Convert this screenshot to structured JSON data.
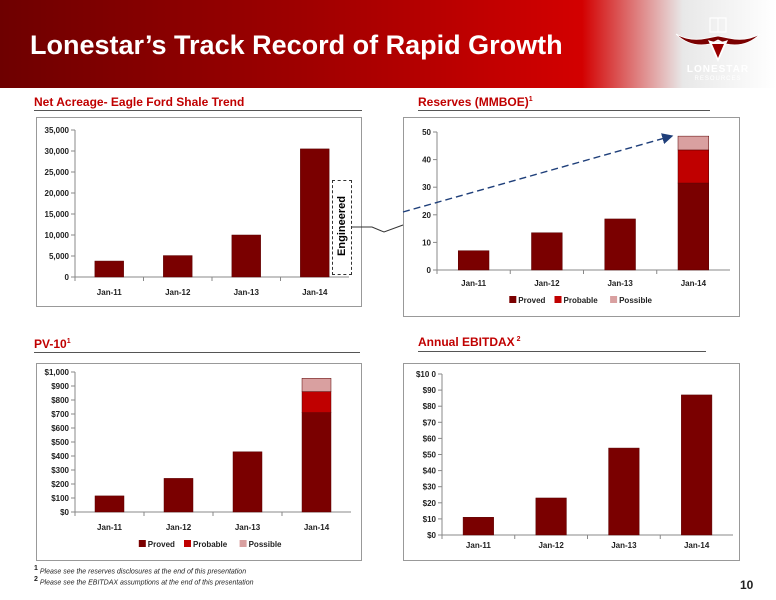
{
  "header": {
    "title": "Lonestar’s Track Record of Rapid Growth"
  },
  "logo": {
    "name": "LONESTAR",
    "sub": "RESOURCES"
  },
  "page_number": "10",
  "annotation": {
    "engineered": "Engineered"
  },
  "footnotes": [
    {
      "mark": "1",
      "text": "Please see the reserves disclosures at the end of this presentation"
    },
    {
      "mark": "2",
      "text": "Please see the EBITDAX assumptions at the end of this presentation"
    }
  ],
  "colors": {
    "proved": "#7a0000",
    "probable": "#c00000",
    "possible": "#d9a0a0",
    "header_dark": "#6e0000",
    "header_red": "#d30000"
  },
  "sections": {
    "acreage": {
      "title": "Net Acreage- Eagle Ford Shale Trend"
    },
    "reserves": {
      "title": "Reserves (MMBOE)",
      "sup": "1"
    },
    "pv10": {
      "title": "PV-10",
      "sup": "1"
    },
    "ebitdax": {
      "title": "Annual EBITDAX",
      "sup": " 2"
    }
  },
  "chart_data": [
    {
      "id": "acreage",
      "type": "bar",
      "categories": [
        "Jan-11",
        "Jan-12",
        "Jan-13",
        "Jan-14"
      ],
      "series": [
        {
          "values": [
            3800,
            5100,
            10000,
            30500
          ]
        }
      ],
      "ylim": [
        0,
        35000
      ],
      "yticks": [
        0,
        5000,
        10000,
        15000,
        20000,
        25000,
        30000,
        35000
      ],
      "ytick_labels": [
        "0",
        "5,000",
        "10,000",
        "15,000",
        "20,000",
        "25,000",
        "30,000",
        "35,000"
      ],
      "legend": null
    },
    {
      "id": "reserves",
      "type": "bar",
      "stacked": true,
      "categories": [
        "Jan-11",
        "Jan-12",
        "Jan-13",
        "Jan-14"
      ],
      "series": [
        {
          "name": "Proved",
          "values": [
            7,
            13.5,
            18.5,
            31.5
          ]
        },
        {
          "name": "Probable",
          "values": [
            0,
            0,
            0,
            12
          ]
        },
        {
          "name": "Possible",
          "values": [
            0,
            0,
            0,
            5
          ]
        }
      ],
      "ylim": [
        0,
        50
      ],
      "yticks": [
        0,
        10,
        20,
        30,
        40,
        50
      ],
      "ytick_labels": [
        "0",
        "10",
        "20",
        "30",
        "40",
        "50"
      ],
      "legend": "bottom"
    },
    {
      "id": "pv10",
      "type": "bar",
      "stacked": true,
      "categories": [
        "Jan-11",
        "Jan-12",
        "Jan-13",
        "Jan-14"
      ],
      "series": [
        {
          "name": "Proved",
          "values": [
            115,
            240,
            430,
            710
          ]
        },
        {
          "name": "Probable",
          "values": [
            0,
            0,
            0,
            150
          ]
        },
        {
          "name": "Possible",
          "values": [
            0,
            0,
            0,
            95
          ]
        }
      ],
      "ylim": [
        0,
        1000
      ],
      "yticks": [
        0,
        100,
        200,
        300,
        400,
        500,
        600,
        700,
        800,
        900,
        1000
      ],
      "ytick_labels": [
        "$0",
        "$100",
        "$200",
        "$300",
        "$400",
        "$500",
        "$600",
        "$700",
        "$800",
        "$900",
        "$1,000"
      ],
      "legend": "bottom"
    },
    {
      "id": "ebitdax",
      "type": "bar",
      "categories": [
        "Jan-11",
        "Jan-12",
        "Jan-13",
        "Jan-14"
      ],
      "series": [
        {
          "values": [
            11,
            23,
            54,
            87
          ]
        }
      ],
      "ylim": [
        0,
        100
      ],
      "yticks": [
        0,
        10,
        20,
        30,
        40,
        50,
        60,
        70,
        80,
        90,
        100
      ],
      "ytick_labels": [
        "$0",
        "$10",
        "$20",
        "$30",
        "$40",
        "$50",
        "$60",
        "$70",
        "$80",
        "$90",
        "$10 0"
      ],
      "legend": null
    }
  ]
}
